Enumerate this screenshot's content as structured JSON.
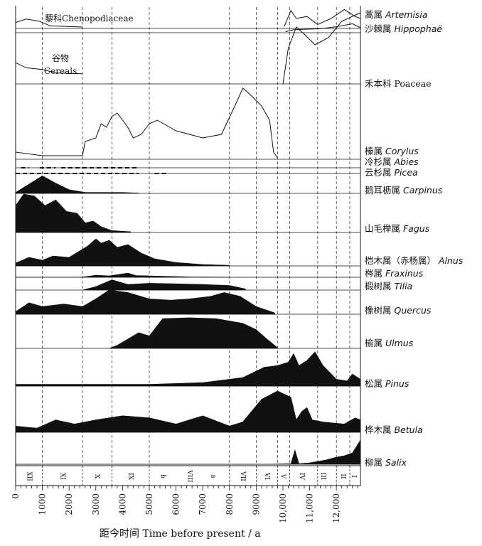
{
  "chart_data": {
    "type": "area",
    "xlabel": "距今时间 Time before present / a",
    "xlim": [
      0,
      12900
    ],
    "x_ticks": [
      0,
      1000,
      2000,
      3000,
      4000,
      5000,
      6000,
      7000,
      8000,
      9000,
      10000,
      11000,
      12000
    ],
    "x_tick_labels": [
      "0",
      "1000",
      "2000",
      "3000",
      "4000",
      "5000",
      "6000",
      "7000",
      "8000",
      "9000",
      "10,000",
      "11,000",
      "12,000"
    ],
    "zone_boundaries": [
      1000,
      2500,
      3600,
      5000,
      8000,
      9000,
      9800,
      10250,
      11300,
      12000,
      12500
    ],
    "zones": [
      {
        "label": "XII",
        "x": 500
      },
      {
        "label": "XI",
        "x": 1750
      },
      {
        "label": "X",
        "x": 3050
      },
      {
        "label": "IX",
        "x": 4300
      },
      {
        "label": "b",
        "x": 5500
      },
      {
        "label": "VIII",
        "x": 6500
      },
      {
        "label": "a",
        "x": 7400
      },
      {
        "label": "VII",
        "x": 8500
      },
      {
        "label": "VI",
        "x": 9400
      },
      {
        "label": "V",
        "x": 10000
      },
      {
        "label": "IV",
        "x": 10700
      },
      {
        "label": "III",
        "x": 11500
      },
      {
        "label": "II",
        "x": 12250
      },
      {
        "label": "I",
        "x": 12650
      }
    ],
    "series": [
      {
        "name": "蒿属 Artemisia",
        "zh": "蒿属",
        "latin": "Artemisia",
        "style": "curve",
        "points": [
          [
            10050,
            0.1
          ],
          [
            10300,
            0.9
          ],
          [
            10500,
            0.5
          ],
          [
            10900,
            0.6
          ],
          [
            11300,
            0.2
          ],
          [
            11800,
            0.5
          ],
          [
            12300,
            0.95
          ],
          [
            12700,
            0.6
          ],
          [
            12900,
            0.5
          ]
        ]
      },
      {
        "name": "沙棘属 Hippophaë",
        "zh": "沙棘属",
        "latin": "Hippophaë",
        "style": "curve",
        "points": [
          [
            10100,
            0.1
          ],
          [
            10400,
            0.3
          ],
          [
            11400,
            0.4
          ],
          [
            12000,
            0.6
          ],
          [
            12600,
            0.9
          ],
          [
            12900,
            0.5
          ]
        ]
      },
      {
        "name": "藜科 Chenopodiaceae",
        "zh": "藜科",
        "latin": "Chenopodiaceae",
        "style": "curve",
        "inset": true,
        "points": [
          [
            0,
            0.4
          ],
          [
            400,
            0.7
          ],
          [
            900,
            0.5
          ],
          [
            1300,
            0.1
          ],
          [
            2500,
            0
          ]
        ]
      },
      {
        "name": "谷物 Cereals",
        "zh": "谷物",
        "latin": "Cereals",
        "style": "curve",
        "inset": true,
        "points": [
          [
            0,
            0.7
          ],
          [
            400,
            0.4
          ],
          [
            1000,
            0.3
          ],
          [
            1500,
            0.1
          ],
          [
            2500,
            0.05
          ]
        ]
      },
      {
        "name": "禾本科 Poaceae",
        "zh": "禾本科",
        "latin": "Poaceae",
        "style": "curve",
        "points": [
          [
            10000,
            0
          ],
          [
            10200,
            0.5
          ],
          [
            10500,
            0.8
          ],
          [
            10800,
            0.7
          ],
          [
            11200,
            0.55
          ],
          [
            11700,
            0.65
          ],
          [
            12200,
            0.88
          ],
          [
            12600,
            0.95
          ],
          [
            12900,
            1
          ]
        ]
      },
      {
        "name": "榛属 Corylus",
        "zh": "榛属",
        "latin": "Corylus",
        "style": "curve",
        "points": [
          [
            0,
            0.1
          ],
          [
            1000,
            0.05
          ],
          [
            2000,
            0.05
          ],
          [
            2500,
            0.05
          ],
          [
            2600,
            0.25
          ],
          [
            3000,
            0.3
          ],
          [
            3200,
            0.5
          ],
          [
            3400,
            0.45
          ],
          [
            3600,
            0.6
          ],
          [
            3800,
            0.65
          ],
          [
            4000,
            0.55
          ],
          [
            4200,
            0.45
          ],
          [
            4400,
            0.3
          ],
          [
            4700,
            0.35
          ],
          [
            5000,
            0.5
          ],
          [
            5300,
            0.55
          ],
          [
            6000,
            0.4
          ],
          [
            7000,
            0.3
          ],
          [
            7700,
            0.35
          ],
          [
            8200,
            0.75
          ],
          [
            8500,
            1
          ],
          [
            8800,
            0.9
          ],
          [
            9200,
            0.75
          ],
          [
            9500,
            0.55
          ],
          [
            9650,
            0.1
          ],
          [
            9800,
            0.02
          ]
        ]
      },
      {
        "name": "冷杉属 Abies",
        "zh": "冷杉属",
        "latin": "Abies",
        "style": "dashed",
        "segments": [
          [
            200,
            500
          ],
          [
            900,
            1500
          ],
          [
            1700,
            4600
          ]
        ]
      },
      {
        "name": "云杉属 Picea",
        "zh": "云杉属",
        "latin": "Picea",
        "style": "dashed",
        "segments": [
          [
            0,
            4600
          ],
          [
            5200,
            5700
          ]
        ]
      },
      {
        "name": "鹅耳枥属 Carpinus",
        "zh": "鹅耳枥属",
        "latin": "Carpinus",
        "style": "filled",
        "points": [
          [
            0,
            0.05
          ],
          [
            500,
            0.5
          ],
          [
            1000,
            0.95
          ],
          [
            1500,
            0.55
          ],
          [
            2000,
            0.2
          ],
          [
            2600,
            0.05
          ],
          [
            4000,
            0.05
          ],
          [
            4600,
            0.02
          ]
        ]
      },
      {
        "name": "山毛榉属 Fagus",
        "zh": "山毛榉属",
        "latin": "Fagus",
        "style": "filled",
        "points": [
          [
            0,
            0.7
          ],
          [
            300,
            1
          ],
          [
            700,
            0.95
          ],
          [
            1100,
            0.7
          ],
          [
            1500,
            0.85
          ],
          [
            1900,
            0.55
          ],
          [
            2300,
            0.5
          ],
          [
            2600,
            0.25
          ],
          [
            2900,
            0.3
          ],
          [
            3200,
            0.15
          ],
          [
            3600,
            0.05
          ],
          [
            4300,
            0.02
          ]
        ]
      },
      {
        "name": "桤木属（赤杨属）Alnus",
        "zh": "桤木属（赤杨属）",
        "latin": "Alnus",
        "style": "filled",
        "points": [
          [
            0,
            0.1
          ],
          [
            500,
            0.3
          ],
          [
            1000,
            0.2
          ],
          [
            1400,
            0.35
          ],
          [
            2000,
            0.3
          ],
          [
            2700,
            0.7
          ],
          [
            3000,
            0.95
          ],
          [
            3200,
            0.8
          ],
          [
            3500,
            0.9
          ],
          [
            3800,
            0.65
          ],
          [
            4200,
            0.75
          ],
          [
            4700,
            0.45
          ],
          [
            5200,
            0.25
          ],
          [
            6000,
            0.12
          ],
          [
            7000,
            0.05
          ],
          [
            8000,
            0.02
          ]
        ]
      },
      {
        "name": "梣属 Fraxinus",
        "zh": "梣属",
        "latin": "Fraxinus",
        "style": "filled",
        "points": [
          [
            0,
            0.02
          ],
          [
            2500,
            0.02
          ],
          [
            3000,
            0.3
          ],
          [
            3500,
            0.2
          ],
          [
            4200,
            0.6
          ],
          [
            4500,
            0.25
          ],
          [
            5500,
            0.15
          ],
          [
            6500,
            0.05
          ],
          [
            8000,
            0.02
          ]
        ]
      },
      {
        "name": "椴树属 Tilia",
        "zh": "椴树属",
        "latin": "Tilia",
        "style": "filled",
        "points": [
          [
            2500,
            0
          ],
          [
            3000,
            0.3
          ],
          [
            3600,
            0.9
          ],
          [
            4200,
            0.5
          ],
          [
            5000,
            0.6
          ],
          [
            6000,
            0.55
          ],
          [
            7000,
            0.5
          ],
          [
            8000,
            0.4
          ],
          [
            8600,
            0.1
          ]
        ]
      },
      {
        "name": "橡树属 Quercus",
        "zh": "橡树属",
        "latin": "Quercus",
        "style": "filled",
        "points": [
          [
            0,
            0.1
          ],
          [
            500,
            0.45
          ],
          [
            1000,
            0.3
          ],
          [
            1800,
            0.4
          ],
          [
            2500,
            0.3
          ],
          [
            3000,
            0.6
          ],
          [
            3500,
            0.95
          ],
          [
            4200,
            0.85
          ],
          [
            5000,
            0.6
          ],
          [
            5800,
            0.55
          ],
          [
            6500,
            0.6
          ],
          [
            7300,
            0.7
          ],
          [
            7800,
            0.85
          ],
          [
            8400,
            0.7
          ],
          [
            9000,
            0.3
          ],
          [
            9700,
            0.05
          ]
        ]
      },
      {
        "name": "榆属 Ulmus",
        "zh": "榆属",
        "latin": "Ulmus",
        "style": "filled",
        "points": [
          [
            3500,
            0
          ],
          [
            3800,
            0.1
          ],
          [
            4300,
            0.35
          ],
          [
            4600,
            0.5
          ],
          [
            5000,
            0.4
          ],
          [
            5500,
            0.95
          ],
          [
            6500,
            0.98
          ],
          [
            7500,
            0.95
          ],
          [
            8500,
            0.8
          ],
          [
            9000,
            0.6
          ],
          [
            9400,
            0.3
          ],
          [
            9800,
            0.02
          ]
        ]
      },
      {
        "name": "松属 Pinus",
        "zh": "松属",
        "latin": "Pinus",
        "style": "filled",
        "points": [
          [
            0,
            0.05
          ],
          [
            2000,
            0.05
          ],
          [
            5000,
            0.05
          ],
          [
            7000,
            0.1
          ],
          [
            8500,
            0.25
          ],
          [
            9300,
            0.55
          ],
          [
            9800,
            0.6
          ],
          [
            10200,
            0.7
          ],
          [
            10400,
            0.95
          ],
          [
            10600,
            0.6
          ],
          [
            10900,
            0.75
          ],
          [
            11200,
            1
          ],
          [
            11500,
            0.6
          ],
          [
            12000,
            0.2
          ],
          [
            12400,
            0.15
          ],
          [
            12600,
            0.35
          ],
          [
            12900,
            0.2
          ]
        ]
      },
      {
        "name": "桦木属 Betula",
        "zh": "桦木属",
        "latin": "Betula",
        "style": "filled",
        "points": [
          [
            0,
            0.15
          ],
          [
            800,
            0.1
          ],
          [
            1500,
            0.3
          ],
          [
            2200,
            0.2
          ],
          [
            3000,
            0.3
          ],
          [
            4000,
            0.4
          ],
          [
            5000,
            0.35
          ],
          [
            6000,
            0.2
          ],
          [
            7000,
            0.4
          ],
          [
            8000,
            0.15
          ],
          [
            8500,
            0.25
          ],
          [
            9200,
            0.8
          ],
          [
            9800,
            1
          ],
          [
            10300,
            0.85
          ],
          [
            10500,
            0.3
          ],
          [
            10700,
            0.5
          ],
          [
            10900,
            0.6
          ],
          [
            11100,
            0.3
          ],
          [
            11500,
            0.25
          ],
          [
            12300,
            0.2
          ],
          [
            12700,
            0.35
          ],
          [
            12900,
            0.3
          ]
        ]
      },
      {
        "name": "柳属 Salix",
        "zh": "柳属",
        "latin": "Salix",
        "style": "filled",
        "points": [
          [
            0,
            0
          ],
          [
            9500,
            0
          ],
          [
            10300,
            0.02
          ],
          [
            10450,
            0.5
          ],
          [
            10600,
            0.02
          ],
          [
            11000,
            0.05
          ],
          [
            11600,
            0.15
          ],
          [
            12000,
            0.25
          ],
          [
            12300,
            0.3
          ],
          [
            12600,
            0.4
          ],
          [
            12900,
            0.85
          ]
        ]
      }
    ],
    "inset_labels": [
      "藜科Chenopodiaceae",
      "谷物",
      "Cereals"
    ]
  }
}
